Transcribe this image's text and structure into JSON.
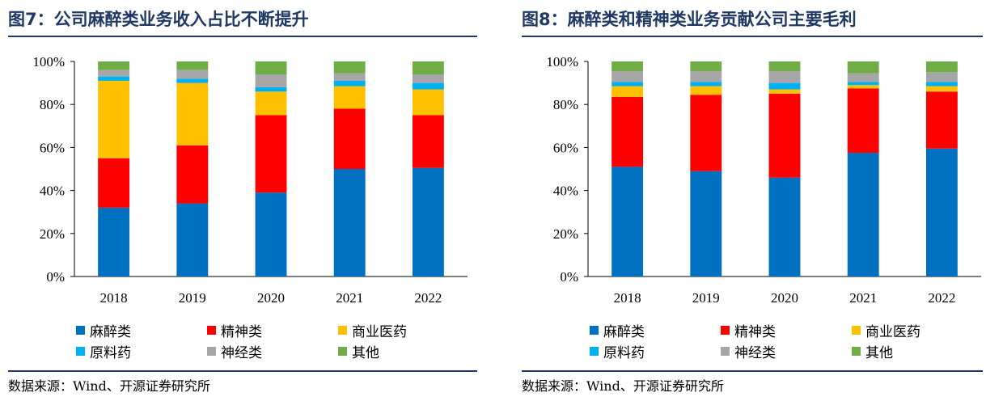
{
  "charts": [
    {
      "title": "图7：公司麻醉类业务收入占比不断提升",
      "source": "数据来源：Wind、开源证券研究所"
    },
    {
      "title": "图8：麻醉类和精神类业务贡献公司主要毛利",
      "source": "数据来源：Wind、开源证券研究所"
    }
  ],
  "chart_data": [
    {
      "type": "bar",
      "stacked": true,
      "categories": [
        "2018",
        "2019",
        "2020",
        "2021",
        "2022"
      ],
      "ylim": [
        0,
        100
      ],
      "yticks": [
        "0%",
        "20%",
        "40%",
        "60%",
        "80%",
        "100%"
      ],
      "legend_position": "bottom",
      "series": [
        {
          "name": "麻醉类",
          "color": "#0070c0",
          "values": [
            32,
            34,
            39,
            50,
            50.5
          ]
        },
        {
          "name": "精神类",
          "color": "#ff0000",
          "values": [
            23,
            27,
            36,
            28,
            24.5
          ]
        },
        {
          "name": "商业医药",
          "color": "#ffc000",
          "values": [
            36,
            29,
            11,
            10.5,
            12
          ]
        },
        {
          "name": "原料药",
          "color": "#00b0f0",
          "values": [
            2,
            2,
            2,
            2.5,
            3
          ]
        },
        {
          "name": "神经类",
          "color": "#a6a6a6",
          "values": [
            3,
            4,
            6,
            3.5,
            4
          ]
        },
        {
          "name": "其他",
          "color": "#70ad47",
          "values": [
            4,
            4,
            6,
            5.5,
            6
          ]
        }
      ]
    },
    {
      "type": "bar",
      "stacked": true,
      "categories": [
        "2018",
        "2019",
        "2020",
        "2021",
        "2022"
      ],
      "ylim": [
        0,
        100
      ],
      "yticks": [
        "0%",
        "20%",
        "40%",
        "60%",
        "80%",
        "100%"
      ],
      "legend_position": "bottom",
      "series": [
        {
          "name": "麻醉类",
          "color": "#0070c0",
          "values": [
            51,
            49,
            46,
            57.5,
            59.5
          ]
        },
        {
          "name": "精神类",
          "color": "#ff0000",
          "values": [
            32.5,
            35.5,
            39,
            30,
            26.5
          ]
        },
        {
          "name": "商业医药",
          "color": "#ffc000",
          "values": [
            5,
            4,
            2,
            1.5,
            2.5
          ]
        },
        {
          "name": "原料药",
          "color": "#00b0f0",
          "values": [
            2,
            2,
            3,
            1.5,
            2
          ]
        },
        {
          "name": "神经类",
          "color": "#a6a6a6",
          "values": [
            5,
            5,
            5.5,
            4,
            4.5
          ]
        },
        {
          "name": "其他",
          "color": "#70ad47",
          "values": [
            4.5,
            4.5,
            4.5,
            5.5,
            5
          ]
        }
      ]
    }
  ]
}
